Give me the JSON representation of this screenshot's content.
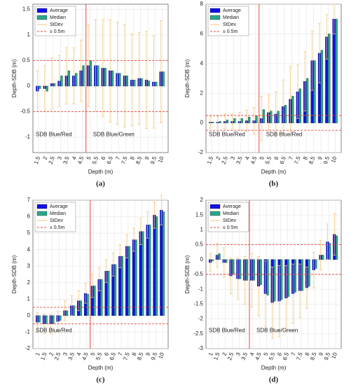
{
  "chart_data": [
    {
      "type": "bar",
      "caption": "(a)",
      "ylabel": "Depth-SDB (m)",
      "xlabel": "Depth (m)",
      "x": [
        1.5,
        2,
        2.5,
        3,
        3.5,
        4,
        4.5,
        5,
        5.5,
        6,
        6.5,
        7,
        7.5,
        8,
        8.5,
        9,
        9.5,
        10
      ],
      "xticks": [
        1.5,
        2,
        2.5,
        3,
        3.5,
        4,
        4.5,
        5,
        5.5,
        6,
        6.5,
        7,
        7.5,
        8,
        8.5,
        9,
        9.5,
        10
      ],
      "xlim": [
        1.1,
        10.4
      ],
      "ylim": [
        -1.3,
        1.6
      ],
      "yticks": [
        -1,
        -0.5,
        0,
        0.5,
        1,
        1.5
      ],
      "grid": true,
      "vline": 4.75,
      "series": [
        {
          "name": "Average",
          "color": "#1010e8",
          "values": [
            -0.1,
            -0.05,
            0.05,
            0.1,
            0.2,
            0.2,
            0.3,
            0.4,
            0.4,
            0.35,
            0.3,
            0.25,
            0.2,
            0.12,
            0.15,
            0.12,
            0.08,
            0.28
          ]
        },
        {
          "name": "Median",
          "color": "#2aa68a",
          "values": [
            -0.05,
            -0.1,
            0.05,
            0.2,
            0.3,
            0.25,
            0.4,
            0.5,
            0.4,
            0.35,
            0.3,
            0.25,
            0.2,
            0.12,
            0.15,
            0.1,
            0.08,
            0.28
          ]
        },
        {
          "name": "StDev",
          "color": "#f3c676",
          "values": [
            0.4,
            0.45,
            0.5,
            0.5,
            0.55,
            0.55,
            0.6,
            0.8,
            0.9,
            0.95,
            1.0,
            1.0,
            1.0,
            0.9,
            0.9,
            0.95,
            0.9,
            1.0
          ]
        }
      ],
      "threshold": {
        "name": "± 0.5m",
        "color": "#e8463a",
        "values": [
          0.5,
          -0.5
        ]
      },
      "annotations": [
        "SDB Blue/Red",
        "SDB Blue/Green"
      ]
    },
    {
      "type": "bar",
      "caption": "(b)",
      "ylabel": "Depth-SDB (m)",
      "xlabel": "Depth (m)",
      "x": [
        1.5,
        2,
        2.5,
        3,
        3.5,
        4,
        4.5,
        5,
        5.5,
        6,
        6.5,
        7,
        7.5,
        8,
        8.5,
        9,
        9.5,
        10
      ],
      "xticks": [
        1.5,
        2,
        2.5,
        3,
        3.5,
        4,
        4.5,
        5,
        5.5,
        6,
        6.5,
        7,
        7.5,
        8,
        8.5,
        9,
        9.5,
        10
      ],
      "xlim": [
        1.1,
        10.4
      ],
      "ylim": [
        -2,
        8
      ],
      "yticks": [
        -2,
        0,
        2,
        4,
        6,
        8
      ],
      "grid": true,
      "vline": 4.75,
      "series": [
        {
          "name": "Average",
          "color": "#1010e8",
          "values": [
            0.05,
            0.05,
            0.1,
            0.1,
            0.1,
            0.15,
            0.15,
            0.3,
            0.7,
            0.6,
            1.1,
            1.6,
            2.1,
            2.8,
            4.2,
            4.7,
            5.8,
            7.0
          ]
        },
        {
          "name": "Median",
          "color": "#2aa68a",
          "values": [
            0.05,
            0.1,
            0.2,
            0.3,
            0.3,
            0.4,
            0.5,
            0.9,
            0.8,
            0.8,
            1.2,
            1.8,
            2.3,
            3.0,
            4.2,
            4.9,
            6.0,
            7.0
          ]
        },
        {
          "name": "StDev",
          "color": "#f3c676",
          "values": [
            0.4,
            0.4,
            0.5,
            0.5,
            0.6,
            0.7,
            0.9,
            1.5,
            1.2,
            1.5,
            1.8,
            2.2,
            1.8,
            2.0,
            2.0,
            2.0,
            1.5,
            1.0
          ]
        }
      ],
      "threshold": {
        "name": "± 0.5m",
        "color": "#e8463a",
        "values": [
          0.5,
          -0.5
        ]
      },
      "annotations": [
        "SDB Blue/Red",
        "SDB Blue/Red"
      ]
    },
    {
      "type": "bar",
      "caption": "(c)",
      "ylabel": "Depth-SDB (m)",
      "xlabel": "Depth (m)",
      "x": [
        1,
        1.5,
        2,
        2.5,
        3,
        3.5,
        4,
        4.5,
        5,
        5.5,
        6,
        6.5,
        7,
        7.5,
        8,
        8.5,
        9,
        9.5,
        10
      ],
      "xticks": [
        1,
        1.5,
        2,
        2.5,
        3,
        3.5,
        4,
        4.5,
        5,
        5.5,
        6,
        6.5,
        7,
        7.5,
        8,
        8.5,
        9,
        9.5,
        10
      ],
      "xlim": [
        0.6,
        10.4
      ],
      "ylim": [
        -2,
        7
      ],
      "yticks": [
        -2,
        -1,
        0,
        1,
        2,
        3,
        4,
        5,
        6,
        7
      ],
      "grid": true,
      "vline": 4.75,
      "series": [
        {
          "name": "Average",
          "color": "#1010e8",
          "values": [
            -0.4,
            -0.5,
            -0.5,
            -0.35,
            0.3,
            0.6,
            0.9,
            1.35,
            1.8,
            2.2,
            2.7,
            3.1,
            3.6,
            4.2,
            4.6,
            5.1,
            5.5,
            6.1,
            6.4
          ]
        },
        {
          "name": "Median",
          "color": "#2aa68a",
          "values": [
            -0.4,
            -0.5,
            -0.5,
            -0.3,
            0.3,
            0.6,
            0.9,
            1.3,
            1.8,
            2.2,
            2.7,
            3.1,
            3.6,
            4.2,
            4.6,
            5.1,
            5.5,
            6.0,
            6.3
          ]
        },
        {
          "name": "StDev",
          "color": "#f3c676",
          "values": [
            0.6,
            0.6,
            0.6,
            0.6,
            0.6,
            0.6,
            0.6,
            0.6,
            0.7,
            0.7,
            0.7,
            0.7,
            0.7,
            0.7,
            0.7,
            0.8,
            0.8,
            0.8,
            0.9
          ]
        }
      ],
      "threshold": {
        "name": "± 0.5m",
        "color": "#e8463a",
        "values": [
          0.5,
          -0.5
        ]
      },
      "annotations": [
        "SDB Blue/Red"
      ]
    },
    {
      "type": "bar",
      "caption": "(d)",
      "ylabel": "Depth-SDB (m)",
      "xlabel": "Depth (m)",
      "x": [
        1,
        1.5,
        2,
        2.5,
        3,
        3.5,
        4,
        4.5,
        5,
        5.5,
        6,
        6.5,
        7,
        7.5,
        8,
        8.5,
        9,
        9.5,
        10
      ],
      "xticks": [
        1,
        1.5,
        2,
        2.5,
        3,
        3.5,
        4,
        4.5,
        5,
        5.5,
        6,
        6.5,
        7,
        7.5,
        8,
        8.5,
        9,
        9.5,
        10
      ],
      "xlim": [
        0.6,
        10.4
      ],
      "ylim": [
        -3,
        2
      ],
      "yticks": [
        -3,
        -2.5,
        -2,
        -1.5,
        -1,
        -0.5,
        0,
        0.5,
        1,
        1.5,
        2
      ],
      "grid": true,
      "vline": 3.75,
      "series": [
        {
          "name": "Average",
          "color": "#1010e8",
          "values": [
            -0.1,
            0.15,
            -0.1,
            -0.55,
            -0.65,
            -0.7,
            -0.7,
            -0.9,
            -1.15,
            -1.45,
            -1.4,
            -1.3,
            -1.15,
            -1.05,
            -0.95,
            -0.35,
            0.15,
            0.6,
            0.85
          ]
        },
        {
          "name": "Median",
          "color": "#2aa68a",
          "values": [
            -0.05,
            0.2,
            -0.1,
            -0.5,
            -0.65,
            -0.7,
            -0.7,
            -0.85,
            -1.2,
            -1.4,
            -1.35,
            -1.25,
            -1.1,
            -1.05,
            -0.9,
            -0.3,
            0.15,
            0.55,
            0.8
          ]
        },
        {
          "name": "StDev",
          "color": "#f3c676",
          "values": [
            0.3,
            0.4,
            0.5,
            0.6,
            0.7,
            0.8,
            0.9,
            1.0,
            1.1,
            1.2,
            1.2,
            1.1,
            1.0,
            0.9,
            0.7,
            0.6,
            0.5,
            0.6,
            0.7
          ]
        }
      ],
      "threshold": {
        "name": "± 0.5m",
        "color": "#e8463a",
        "values": [
          0.5,
          -0.5
        ]
      },
      "annotations": [
        "SDB Blue/Red",
        "SDB Blue/Green"
      ]
    }
  ]
}
